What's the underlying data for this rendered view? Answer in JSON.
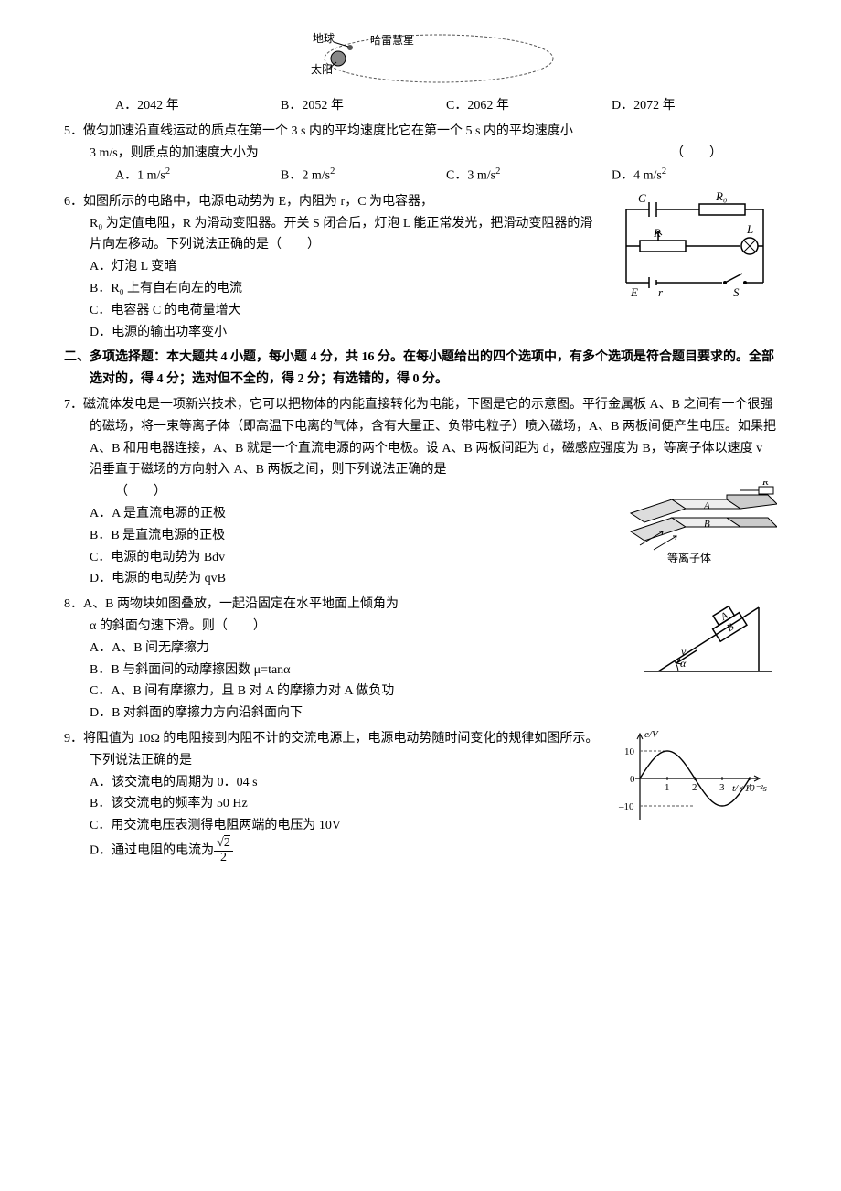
{
  "fig_orbit": {
    "labels": {
      "earth": "地球",
      "sun": "太阳",
      "comet": "哈雷慧星"
    },
    "colors": {
      "stroke": "#555",
      "fill": "#888"
    }
  },
  "q4_options": {
    "A": "A．2042 年",
    "B": "B．2052 年",
    "C": "C．2062 年",
    "D": "D．2072 年"
  },
  "q5": {
    "text": "5．做匀加速沿直线运动的质点在第一个 3 s 内的平均速度比它在第一个 5 s 内的平均速度小",
    "text2": "3 m/s，则质点的加速度大小为",
    "paren": "（　　）",
    "A": "A．1 m/s",
    "B": "B．2 m/s",
    "C": "C．3 m/s",
    "D": "D．4 m/s",
    "sq": "2"
  },
  "q6": {
    "text1": "6．如图所示的电路中，电源电动势为 E，内阻为 r，C 为电容器，",
    "text2": "R₀ 为定值电阻，R 为滑动变阻器。开关 S 闭合后，灯泡 L 能正常发光，把滑动变阻器的滑片向左移动。下列说法正确的是（　　）",
    "A": "A．灯泡 L 变暗",
    "B": "B．R₀ 上有自右向左的电流",
    "C": "C．电容器 C 的电荷量增大",
    "D": "D．电源的输出功率变小",
    "circuit": {
      "C": "C",
      "R0": "R₀",
      "R": "R",
      "L": "L",
      "E": "E",
      "r": "r",
      "S": "S"
    }
  },
  "section2": "二、多项选择题：本大题共 4 小题，每小题 4 分，共 16 分。在每小题给出的四个选项中，有多个选项是符合题目要求的。全部选对的，得 4 分；选对但不全的，得 2 分；有选错的，得 0 分。",
  "q7": {
    "text": "7．磁流体发电是一项新兴技术，它可以把物体的内能直接转化为电能，下图是它的示意图。平行金属板 A、B 之间有一个很强的磁场，将一束等离子体（即高温下电离的气体，含有大量正、负带电粒子）喷入磁场，A、B 两板间便产生电压。如果把 A、B 和用电器连接，A、B 就是一个直流电源的两个电极。设 A、B 两板间距为 d，磁感应强度为 B，等离子体以速度 v 沿垂直于磁场的方向射入 A、B 两板之间，则下列说法正确的是",
    "paren": "（　　）",
    "A": "A．A 是直流电源的正极",
    "B": "B．B 是直流电源的正极",
    "C": "C．电源的电动势为 Bdv",
    "D": "D．电源的电动势为 qvB",
    "fig": {
      "R": "R",
      "A": "A",
      "B": "B",
      "label": "等离子体"
    }
  },
  "q8": {
    "text": "8．A、B 两物块如图叠放，一起沿固定在水平地面上倾角为",
    "text2": "α 的斜面匀速下滑。则（　　）",
    "A": "A．A、B 间无摩擦力",
    "B": "B．B 与斜面间的动摩擦因数 μ=tanα",
    "C": "C．A、B 间有摩擦力，且 B 对 A 的摩擦力对 A 做负功",
    "D": "D．B 对斜面的摩擦力方向沿斜面向下",
    "fig": {
      "A": "A",
      "B": "B",
      "v": "v",
      "alpha": "α"
    }
  },
  "q9": {
    "text": "9．将阻值为 10Ω 的电阻接到内阻不计的交流电源上，电源电动势随时间变化的规律如图所示。下列说法正确的是",
    "A": "A．该交流电的周期为 0．04 s",
    "B": "B．该交流电的频率为 50 Hz",
    "C": "C．用交流电压表测得电阻两端的电压为 10V",
    "D_pre": "D．通过电阻的电流为",
    "D_num_sqrt": "2",
    "D_den": "2",
    "chart": {
      "type": "line",
      "ylabel": "e/V",
      "xlabel": "t/×10⁻²s",
      "ylim": [
        -12,
        12
      ],
      "yticks": [
        -10,
        0,
        10
      ],
      "xticks": [
        0,
        1,
        2,
        3,
        4
      ],
      "amplitude": 10,
      "period": 4,
      "axis_color": "#000",
      "curve_color": "#000",
      "dash_color": "#555"
    }
  }
}
